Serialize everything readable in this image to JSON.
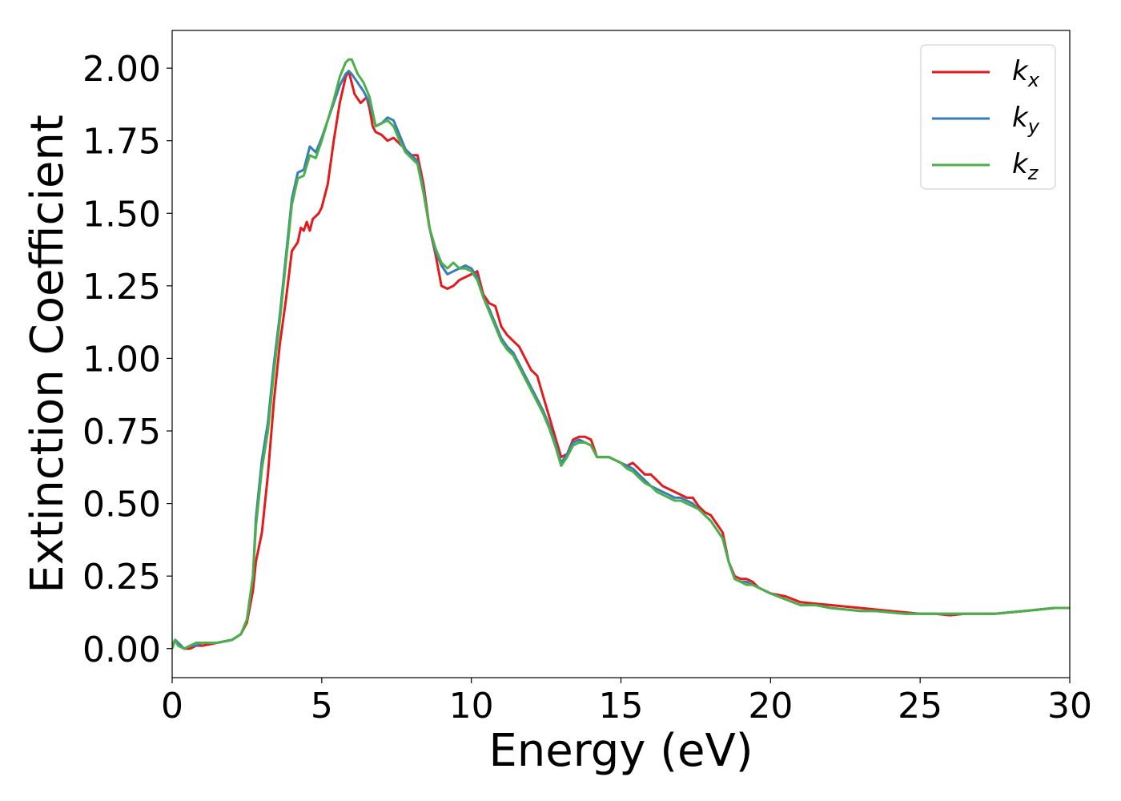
{
  "chart_data": {
    "type": "line",
    "title": "",
    "xlabel": "Energy (eV)",
    "ylabel": "Extinction Coefficient",
    "xlim": [
      0,
      30
    ],
    "ylim": [
      -0.1,
      2.13
    ],
    "xticks": [
      0,
      5,
      10,
      15,
      20,
      25,
      30
    ],
    "xtick_labels": [
      "0",
      "5",
      "10",
      "15",
      "20",
      "25",
      "30"
    ],
    "yticks": [
      0,
      0.25,
      0.5,
      0.75,
      1.0,
      1.25,
      1.5,
      1.75,
      2.0
    ],
    "ytick_labels": [
      "0.00",
      "0.25",
      "0.50",
      "0.75",
      "1.00",
      "1.25",
      "1.50",
      "1.75",
      "2.00"
    ],
    "grid": false,
    "legend_position": "top-right",
    "series": [
      {
        "name": "k",
        "subscript": "x",
        "color": "#e41a1c",
        "x": [
          0,
          0.1,
          0.2,
          0.4,
          0.6,
          0.8,
          1.0,
          1.5,
          2.0,
          2.3,
          2.5,
          2.7,
          2.8,
          3.0,
          3.2,
          3.4,
          3.6,
          3.8,
          4.0,
          4.2,
          4.3,
          4.4,
          4.5,
          4.6,
          4.7,
          4.8,
          4.9,
          5.0,
          5.2,
          5.4,
          5.6,
          5.8,
          5.9,
          6.0,
          6.1,
          6.3,
          6.5,
          6.6,
          6.7,
          6.8,
          7.0,
          7.2,
          7.4,
          7.6,
          7.8,
          8.0,
          8.2,
          8.4,
          8.6,
          8.8,
          9.0,
          9.2,
          9.4,
          9.6,
          9.8,
          10.0,
          10.2,
          10.4,
          10.6,
          10.8,
          11.0,
          11.2,
          11.4,
          11.6,
          11.8,
          12.0,
          12.2,
          12.4,
          12.6,
          12.8,
          13.0,
          13.2,
          13.4,
          13.6,
          13.8,
          14.0,
          14.2,
          14.4,
          14.6,
          14.8,
          15.0,
          15.2,
          15.4,
          15.6,
          15.8,
          16.0,
          16.2,
          16.4,
          16.6,
          16.8,
          17.0,
          17.2,
          17.4,
          17.6,
          17.8,
          18.0,
          18.2,
          18.4,
          18.6,
          18.8,
          19.0,
          19.2,
          19.4,
          19.6,
          19.8,
          20.0,
          20.5,
          21.0,
          21.5,
          22.0,
          22.5,
          23.0,
          23.5,
          24.0,
          24.5,
          25.0,
          25.5,
          26.0,
          26.5,
          27.0,
          27.5,
          28.0,
          28.5,
          29.0,
          29.5,
          30.0
        ],
        "y": [
          0.01,
          0.03,
          0.02,
          0.0,
          0.0,
          0.01,
          0.01,
          0.02,
          0.03,
          0.05,
          0.09,
          0.2,
          0.3,
          0.4,
          0.6,
          0.85,
          1.05,
          1.2,
          1.37,
          1.4,
          1.45,
          1.44,
          1.47,
          1.44,
          1.48,
          1.49,
          1.5,
          1.52,
          1.6,
          1.75,
          1.88,
          1.97,
          1.99,
          1.95,
          1.91,
          1.88,
          1.9,
          1.86,
          1.8,
          1.78,
          1.77,
          1.75,
          1.76,
          1.74,
          1.72,
          1.7,
          1.7,
          1.6,
          1.45,
          1.36,
          1.25,
          1.24,
          1.25,
          1.27,
          1.28,
          1.29,
          1.3,
          1.22,
          1.19,
          1.18,
          1.11,
          1.08,
          1.06,
          1.04,
          1.0,
          0.96,
          0.94,
          0.87,
          0.8,
          0.73,
          0.66,
          0.67,
          0.72,
          0.73,
          0.73,
          0.72,
          0.66,
          0.66,
          0.66,
          0.65,
          0.64,
          0.63,
          0.64,
          0.62,
          0.6,
          0.6,
          0.58,
          0.56,
          0.55,
          0.54,
          0.53,
          0.52,
          0.52,
          0.49,
          0.47,
          0.46,
          0.43,
          0.4,
          0.3,
          0.25,
          0.24,
          0.24,
          0.23,
          0.21,
          0.2,
          0.19,
          0.18,
          0.16,
          0.155,
          0.15,
          0.145,
          0.14,
          0.135,
          0.13,
          0.125,
          0.12,
          0.12,
          0.115,
          0.12,
          0.12,
          0.12,
          0.125,
          0.13,
          0.135,
          0.14,
          0.14
        ]
      },
      {
        "name": "k",
        "subscript": "y",
        "color": "#377eb8",
        "x": [
          0,
          0.1,
          0.2,
          0.4,
          0.6,
          0.8,
          1.0,
          1.5,
          2.0,
          2.3,
          2.5,
          2.7,
          2.8,
          3.0,
          3.2,
          3.4,
          3.6,
          3.8,
          4.0,
          4.2,
          4.4,
          4.6,
          4.8,
          5.0,
          5.2,
          5.4,
          5.6,
          5.8,
          5.9,
          6.0,
          6.2,
          6.4,
          6.6,
          6.8,
          7.0,
          7.2,
          7.4,
          7.6,
          7.8,
          8.0,
          8.2,
          8.4,
          8.6,
          8.8,
          9.0,
          9.2,
          9.4,
          9.6,
          9.8,
          10.0,
          10.2,
          10.4,
          10.6,
          10.8,
          11.0,
          11.2,
          11.4,
          11.6,
          11.8,
          12.0,
          12.2,
          12.4,
          12.6,
          12.8,
          13.0,
          13.2,
          13.4,
          13.6,
          13.8,
          14.0,
          14.2,
          14.4,
          14.6,
          14.8,
          15.0,
          15.2,
          15.4,
          15.6,
          15.8,
          16.0,
          16.2,
          16.4,
          16.6,
          16.8,
          17.0,
          17.2,
          17.4,
          17.6,
          17.8,
          18.0,
          18.2,
          18.4,
          18.6,
          18.8,
          19.0,
          19.2,
          19.4,
          19.6,
          19.8,
          20.0,
          20.5,
          21.0,
          21.5,
          22.0,
          22.5,
          23.0,
          23.5,
          24.0,
          24.5,
          25.0,
          25.5,
          26.0,
          26.5,
          27.0,
          27.5,
          28.0,
          28.5,
          29.0,
          29.5,
          30.0
        ],
        "y": [
          0.0,
          0.03,
          0.02,
          0.0,
          0.01,
          0.01,
          0.02,
          0.02,
          0.03,
          0.05,
          0.1,
          0.25,
          0.45,
          0.65,
          0.78,
          0.98,
          1.15,
          1.35,
          1.55,
          1.64,
          1.65,
          1.73,
          1.71,
          1.76,
          1.82,
          1.88,
          1.94,
          1.98,
          1.99,
          1.98,
          1.95,
          1.92,
          1.88,
          1.8,
          1.81,
          1.83,
          1.82,
          1.77,
          1.72,
          1.7,
          1.68,
          1.58,
          1.45,
          1.37,
          1.32,
          1.29,
          1.3,
          1.31,
          1.32,
          1.31,
          1.28,
          1.21,
          1.17,
          1.12,
          1.07,
          1.04,
          1.02,
          0.98,
          0.94,
          0.9,
          0.86,
          0.82,
          0.77,
          0.71,
          0.64,
          0.67,
          0.71,
          0.72,
          0.71,
          0.7,
          0.66,
          0.66,
          0.66,
          0.65,
          0.64,
          0.63,
          0.62,
          0.6,
          0.58,
          0.56,
          0.55,
          0.54,
          0.53,
          0.52,
          0.52,
          0.51,
          0.5,
          0.48,
          0.46,
          0.44,
          0.41,
          0.38,
          0.3,
          0.24,
          0.23,
          0.23,
          0.22,
          0.21,
          0.2,
          0.19,
          0.17,
          0.15,
          0.15,
          0.14,
          0.135,
          0.13,
          0.13,
          0.125,
          0.12,
          0.12,
          0.12,
          0.12,
          0.12,
          0.12,
          0.12,
          0.125,
          0.13,
          0.135,
          0.14,
          0.14
        ]
      },
      {
        "name": "k",
        "subscript": "z",
        "color": "#4daf4a",
        "x": [
          0,
          0.1,
          0.2,
          0.4,
          0.6,
          0.8,
          1.0,
          1.5,
          2.0,
          2.3,
          2.5,
          2.7,
          2.8,
          3.0,
          3.2,
          3.4,
          3.6,
          3.8,
          4.0,
          4.2,
          4.4,
          4.6,
          4.8,
          5.0,
          5.2,
          5.4,
          5.6,
          5.8,
          5.9,
          6.0,
          6.2,
          6.4,
          6.6,
          6.8,
          7.0,
          7.2,
          7.4,
          7.6,
          7.8,
          8.0,
          8.2,
          8.4,
          8.6,
          8.8,
          9.0,
          9.2,
          9.4,
          9.6,
          9.8,
          10.0,
          10.2,
          10.4,
          10.6,
          10.8,
          11.0,
          11.2,
          11.4,
          11.6,
          11.8,
          12.0,
          12.2,
          12.4,
          12.6,
          12.8,
          13.0,
          13.2,
          13.4,
          13.6,
          13.8,
          14.0,
          14.2,
          14.4,
          14.6,
          14.8,
          15.0,
          15.2,
          15.4,
          15.6,
          15.8,
          16.0,
          16.2,
          16.4,
          16.6,
          16.8,
          17.0,
          17.2,
          17.4,
          17.6,
          17.8,
          18.0,
          18.2,
          18.4,
          18.6,
          18.8,
          19.0,
          19.2,
          19.4,
          19.6,
          19.8,
          20.0,
          20.5,
          21.0,
          21.5,
          22.0,
          22.5,
          23.0,
          23.5,
          24.0,
          24.5,
          25.0,
          25.5,
          26.0,
          26.5,
          27.0,
          27.5,
          28.0,
          28.5,
          29.0,
          29.5,
          30.0
        ],
        "y": [
          0.0,
          0.03,
          0.01,
          0.0,
          0.01,
          0.02,
          0.02,
          0.02,
          0.03,
          0.05,
          0.1,
          0.25,
          0.42,
          0.62,
          0.75,
          0.95,
          1.13,
          1.33,
          1.53,
          1.62,
          1.63,
          1.7,
          1.69,
          1.75,
          1.82,
          1.89,
          1.97,
          2.02,
          2.03,
          2.03,
          1.98,
          1.95,
          1.9,
          1.8,
          1.81,
          1.82,
          1.8,
          1.75,
          1.71,
          1.69,
          1.67,
          1.57,
          1.45,
          1.38,
          1.33,
          1.31,
          1.33,
          1.31,
          1.31,
          1.3,
          1.27,
          1.21,
          1.16,
          1.11,
          1.06,
          1.03,
          1.01,
          0.97,
          0.93,
          0.89,
          0.85,
          0.81,
          0.76,
          0.7,
          0.63,
          0.66,
          0.7,
          0.71,
          0.71,
          0.7,
          0.66,
          0.66,
          0.66,
          0.65,
          0.64,
          0.62,
          0.61,
          0.59,
          0.57,
          0.56,
          0.54,
          0.53,
          0.52,
          0.51,
          0.51,
          0.5,
          0.49,
          0.48,
          0.46,
          0.44,
          0.41,
          0.38,
          0.3,
          0.24,
          0.23,
          0.22,
          0.22,
          0.21,
          0.2,
          0.19,
          0.17,
          0.15,
          0.15,
          0.14,
          0.135,
          0.13,
          0.13,
          0.125,
          0.12,
          0.12,
          0.12,
          0.12,
          0.12,
          0.12,
          0.12,
          0.125,
          0.13,
          0.135,
          0.14,
          0.14
        ]
      }
    ]
  }
}
